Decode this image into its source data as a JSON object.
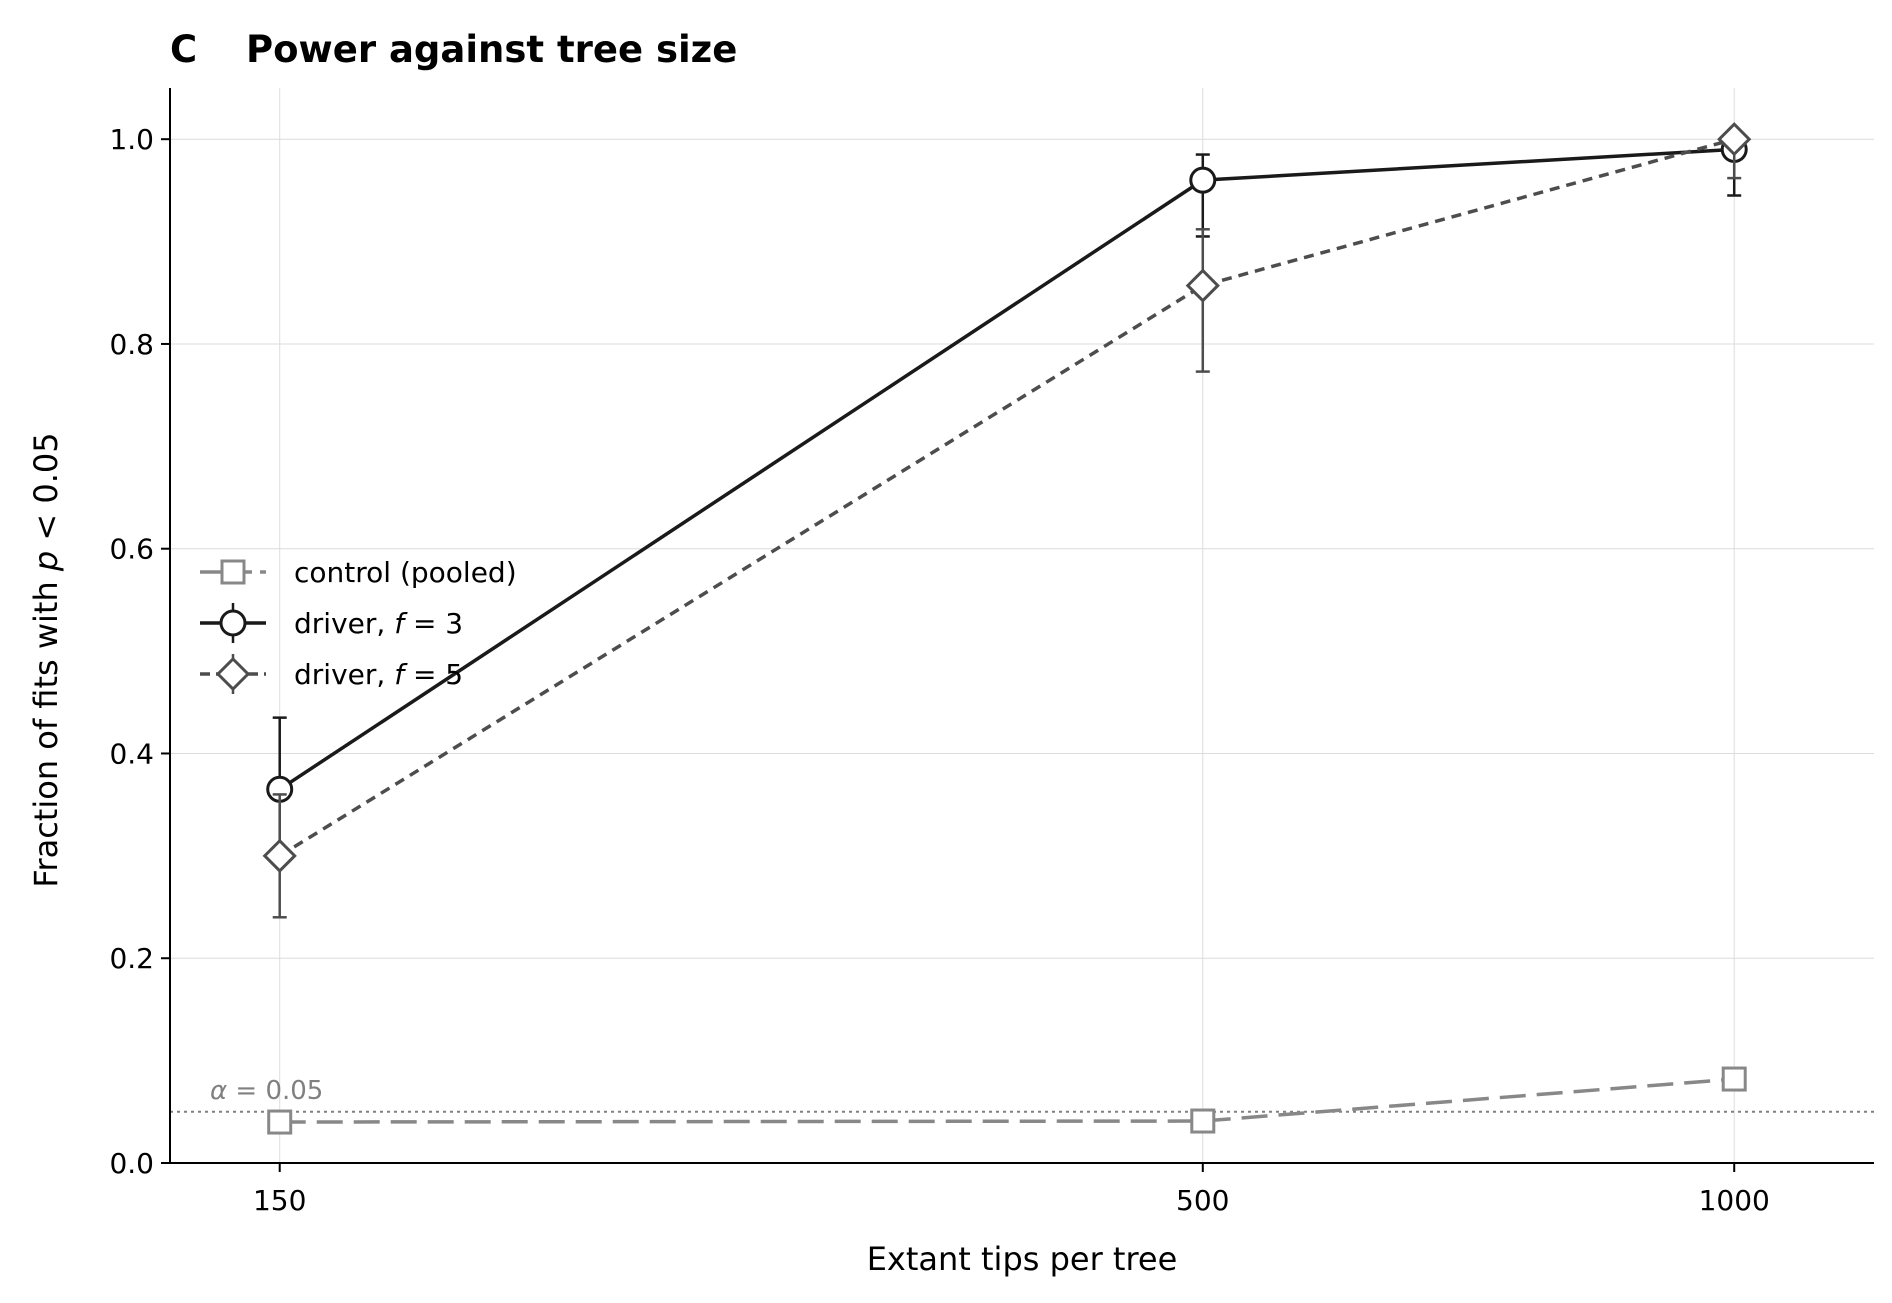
{
  "chart_data": {
    "type": "line",
    "panel_label": "C",
    "title": "Power against tree size",
    "xlabel": "Extant tips per tree",
    "ylabel_prefix": "Fraction of fits with ",
    "ylabel_var": "p",
    "ylabel_suffix": " < 0.05",
    "x_scale": "log",
    "x": [
      150,
      500,
      1000
    ],
    "x_tick_labels": [
      "150",
      "500",
      "1000"
    ],
    "xlim": [
      130,
      1200
    ],
    "ylim": [
      0.0,
      1.05
    ],
    "y_ticks": [
      0.0,
      0.2,
      0.4,
      0.6,
      0.8,
      1.0
    ],
    "y_tick_labels": [
      "0.0",
      "0.2",
      "0.4",
      "0.6",
      "0.8",
      "1.0"
    ],
    "grid": true,
    "legend_position": "center-left",
    "reference_line": {
      "y": 0.05,
      "label_var": "α",
      "label_rest": " = 0.05",
      "color": "#808080"
    },
    "series": [
      {
        "name": "control (pooled)",
        "marker": "square",
        "line_style": "long-dash",
        "color": "#888888",
        "values": [
          0.04,
          0.041,
          0.082
        ]
      },
      {
        "name_prefix": "driver, ",
        "name_var": "f",
        "name_suffix": " = 3",
        "marker": "circle",
        "line_style": "solid",
        "color": "#1a1a1a",
        "values": [
          0.365,
          0.96,
          0.99
        ],
        "err_low": [
          0.3,
          0.905,
          0.945
        ],
        "err_high": [
          0.435,
          0.985,
          1.0
        ]
      },
      {
        "name_prefix": "driver, ",
        "name_var": "f",
        "name_suffix": " = 5",
        "marker": "diamond",
        "line_style": "short-dash",
        "color": "#4d4d4d",
        "values": [
          0.3,
          0.857,
          1.0
        ],
        "err_low": [
          0.24,
          0.773,
          0.962
        ],
        "err_high": [
          0.36,
          0.912,
          1.0
        ]
      }
    ]
  }
}
